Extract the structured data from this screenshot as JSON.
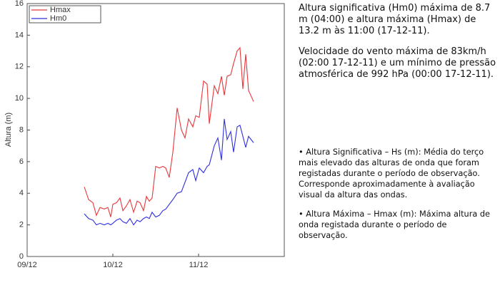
{
  "chart_data": {
    "type": "line",
    "y_label": "Altura (m)",
    "x": [
      9.667,
      9.717,
      9.767,
      9.808,
      9.85,
      9.9,
      9.942,
      9.975,
      10.0,
      10.042,
      10.083,
      10.117,
      10.158,
      10.2,
      10.242,
      10.283,
      10.317,
      10.358,
      10.392,
      10.425,
      10.458,
      10.5,
      10.542,
      10.583,
      10.617,
      10.658,
      10.7,
      10.75,
      10.8,
      10.842,
      10.883,
      10.933,
      10.967,
      11.008,
      11.058,
      11.1,
      11.125,
      11.183,
      11.225,
      11.267,
      11.3,
      11.333,
      11.375,
      11.408,
      11.45,
      11.483,
      11.517,
      11.55,
      11.583,
      11.642
    ],
    "series": [
      {
        "name": "Hmax",
        "color": "#e8363a",
        "values": [
          4.4,
          3.6,
          3.4,
          2.6,
          3.1,
          3.0,
          3.1,
          2.5,
          3.3,
          3.4,
          3.7,
          2.9,
          3.2,
          3.6,
          2.8,
          3.5,
          3.4,
          2.9,
          3.8,
          3.5,
          3.7,
          5.7,
          5.6,
          5.7,
          5.6,
          5.0,
          6.6,
          9.4,
          8.0,
          7.5,
          8.7,
          8.2,
          8.9,
          8.8,
          11.1,
          10.9,
          8.4,
          10.8,
          10.3,
          11.4,
          10.2,
          11.4,
          11.5,
          12.2,
          13.0,
          13.2,
          10.6,
          12.8,
          10.5,
          9.8
        ]
      },
      {
        "name": "Hm0",
        "color": "#2f2fe0",
        "values": [
          2.7,
          2.4,
          2.3,
          2.0,
          2.1,
          2.0,
          2.1,
          2.0,
          2.1,
          2.3,
          2.4,
          2.2,
          2.1,
          2.4,
          2.0,
          2.3,
          2.2,
          2.4,
          2.5,
          2.4,
          2.8,
          2.5,
          2.6,
          2.9,
          3.0,
          3.3,
          3.6,
          4.0,
          4.1,
          4.7,
          5.3,
          5.5,
          4.8,
          5.6,
          5.3,
          5.7,
          5.8,
          7.0,
          7.5,
          6.1,
          8.7,
          7.4,
          7.9,
          6.6,
          8.2,
          8.3,
          7.6,
          6.9,
          7.6,
          7.2
        ]
      }
    ],
    "xlim": [
      9,
      12
    ],
    "xticks": [
      {
        "value": 9,
        "label": "09/12"
      },
      {
        "value": 10,
        "label": "10/12"
      },
      {
        "value": 11,
        "label": "11/12"
      }
    ],
    "ylim": [
      0,
      16
    ],
    "yticks": [
      0,
      2,
      4,
      6,
      8,
      10,
      12,
      14,
      16
    ],
    "grid": false,
    "legend": "upper-left"
  },
  "side_text": {
    "summary": [
      "Altura significativa (Hm0) máxima de 8.7 m (04:00) e altura máxima (Hmax) de 13.2 m às 11:00 (17-12-11).",
      "Velocidade do vento máxima de 83km/h (02:00 17-12-11) e um mínimo de pressão atmosférica de 992 hPa (00:00 17-12-11)."
    ],
    "definitions": [
      "• Altura Significativa – Hs (m): Média do terço mais elevado das alturas de onda que foram registadas durante o período de observação. Corresponde aproximadamente à avaliação visual da altura das ondas.",
      "• Altura Máxima – Hmax (m): Máxima altura de onda registada durante o período de observação."
    ]
  }
}
